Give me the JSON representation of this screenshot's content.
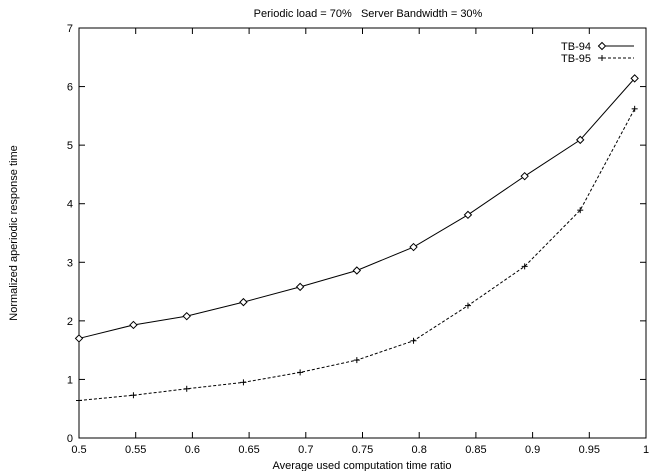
{
  "chart_data": {
    "type": "line",
    "title": "Periodic load = 70%   Server Bandwidth = 30%",
    "xlabel": "Average used computation time ratio",
    "ylabel": "Normalized aperiodic response time",
    "xlim": [
      0.5,
      1
    ],
    "ylim": [
      0,
      7
    ],
    "xticks": [
      "0.5",
      "0.55",
      "0.6",
      "0.65",
      "0.7",
      "0.75",
      "0.8",
      "0.85",
      "0.9",
      "0.95",
      "1"
    ],
    "yticks": [
      "0",
      "1",
      "2",
      "3",
      "4",
      "5",
      "6",
      "7"
    ],
    "grid": false,
    "legend_position": "top-right",
    "series": [
      {
        "name": "TB-94",
        "marker": "diamond",
        "line_style": "solid",
        "x": [
          0.5,
          0.548,
          0.595,
          0.645,
          0.695,
          0.745,
          0.795,
          0.843,
          0.893,
          0.942,
          0.99
        ],
        "y": [
          1.7,
          1.93,
          2.08,
          2.32,
          2.58,
          2.86,
          3.26,
          3.81,
          4.47,
          5.09,
          6.14
        ]
      },
      {
        "name": "TB-95",
        "marker": "plus",
        "line_style": "dashed",
        "x": [
          0.5,
          0.548,
          0.595,
          0.645,
          0.695,
          0.745,
          0.795,
          0.843,
          0.893,
          0.942,
          0.99
        ],
        "y": [
          0.64,
          0.73,
          0.84,
          0.95,
          1.12,
          1.33,
          1.66,
          2.26,
          2.93,
          3.89,
          5.62
        ]
      }
    ]
  }
}
